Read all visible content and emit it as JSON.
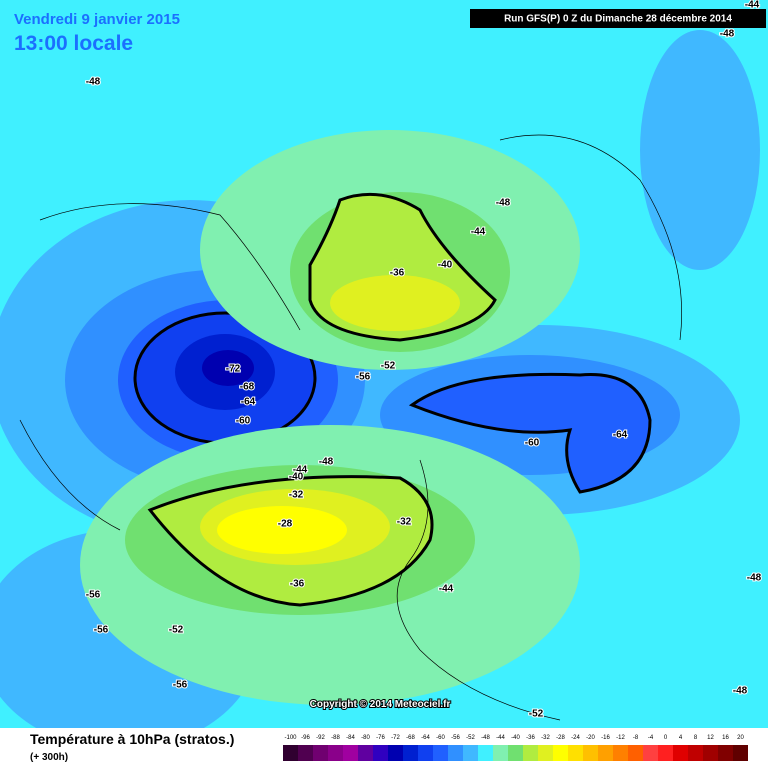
{
  "header": {
    "date": "Vendredi 9 janvier 2015",
    "time": "13:00 locale",
    "run": "Run GFS(P) 0 Z du Dimanche 28 décembre 2014"
  },
  "contour_labels": [
    -48,
    -48,
    -44,
    -48,
    -44,
    -40,
    -36,
    -52,
    -56,
    -72,
    -68,
    -64,
    -60,
    -60,
    -64,
    -48,
    -44,
    -40,
    -32,
    -28,
    -32,
    -36,
    -44,
    -56,
    -56,
    -52,
    -56,
    -52,
    -48,
    -48
  ],
  "copyright": "Copyright © 2014 Meteociel.fr",
  "footer": {
    "title": "Température à 10hPa (stratos.)",
    "lead": "(+ 300h)"
  },
  "legend": {
    "ticks": [
      -100,
      -96,
      -92,
      -88,
      -84,
      -80,
      -76,
      -72,
      -68,
      -64,
      -60,
      -56,
      -52,
      -48,
      -44,
      -40,
      -36,
      -32,
      -28,
      -24,
      -20,
      -16,
      -12,
      -8,
      -4,
      0,
      4,
      8,
      12,
      16,
      20
    ],
    "colors": [
      "#300030",
      "#500050",
      "#700070",
      "#8a008a",
      "#a000a0",
      "#6000a0",
      "#3000c0",
      "#0000b0",
      "#0020d0",
      "#1040f0",
      "#2060ff",
      "#3090ff",
      "#40b8ff",
      "#40f0ff",
      "#80f0b0",
      "#70e070",
      "#b0ec40",
      "#e0f020",
      "#ffff00",
      "#ffe000",
      "#ffc000",
      "#ffa000",
      "#ff8000",
      "#ff6000",
      "#ff4040",
      "#ff2020",
      "#e00000",
      "#c00000",
      "#a00000",
      "#800000",
      "#600000"
    ]
  }
}
